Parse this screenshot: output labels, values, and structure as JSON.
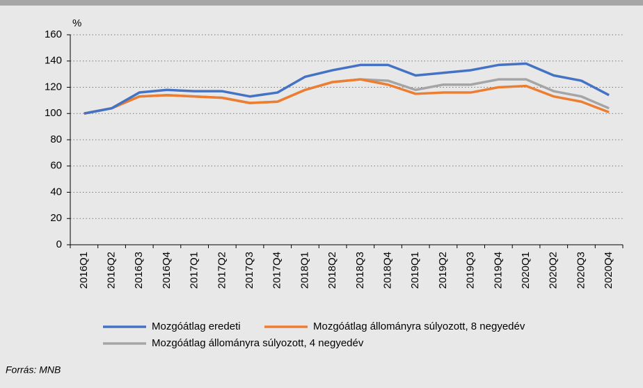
{
  "chart_data": {
    "type": "line",
    "y_unit_label": "%",
    "categories": [
      "2016Q1",
      "2016Q2",
      "2016Q3",
      "2016Q4",
      "2017Q1",
      "2017Q2",
      "2017Q3",
      "2017Q4",
      "2018Q1",
      "2018Q2",
      "2018Q3",
      "2018Q4",
      "2019Q1",
      "2019Q2",
      "2019Q3",
      "2019Q4",
      "2020Q1",
      "2020Q2",
      "2020Q3",
      "2020Q4"
    ],
    "series": [
      {
        "name": "Mozgóátlag eredeti",
        "color": "#4472c4",
        "values": [
          100,
          104,
          116,
          118,
          117,
          117,
          113,
          116,
          128,
          133,
          137,
          137,
          129,
          131,
          133,
          137,
          138,
          129,
          125,
          114
        ]
      },
      {
        "name": "Mozgóátlag állományra súlyozott, 8 negyedév",
        "color": "#ed7d31",
        "values": [
          100,
          104,
          113,
          114,
          113,
          112,
          108,
          109,
          118,
          124,
          126,
          122,
          115,
          116,
          116,
          120,
          121,
          113,
          109,
          101
        ]
      },
      {
        "name": "Mozgóátlag állományra súlyozott, 4 negyedév",
        "color": "#a5a5a5",
        "values": [
          100,
          104,
          113,
          114,
          113,
          112,
          108,
          109,
          118,
          124,
          126,
          125,
          118,
          122,
          122,
          126,
          126,
          117,
          113,
          104
        ]
      }
    ],
    "ylim": [
      0,
      160
    ],
    "yticks": [
      0,
      20,
      40,
      60,
      80,
      100,
      120,
      140,
      160
    ],
    "grid": true,
    "source": "Forrás: MNB"
  }
}
